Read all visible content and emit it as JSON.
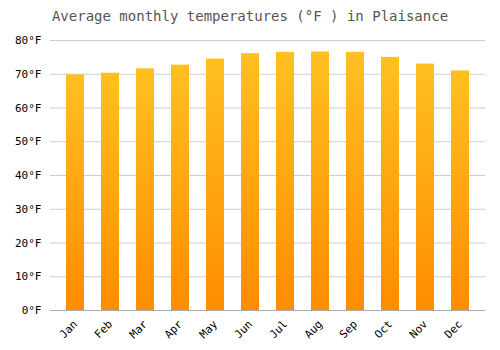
{
  "chart_data": {
    "type": "bar",
    "title": "Average monthly temperatures (°F ) in Plaisance",
    "categories": [
      "Jan",
      "Feb",
      "Mar",
      "Apr",
      "May",
      "Jun",
      "Jul",
      "Aug",
      "Sep",
      "Oct",
      "Nov",
      "Dec"
    ],
    "values": [
      69.8,
      70.3,
      71.6,
      72.7,
      74.5,
      76.1,
      76.5,
      76.6,
      76.5,
      75.0,
      73.0,
      71.0
    ],
    "color": [
      "#FF8C00",
      "#FFC020"
    ],
    "ylim": [
      0,
      80
    ],
    "yticks": [
      {
        "value": 0,
        "label": "0°F"
      },
      {
        "value": 10,
        "label": "10°F"
      },
      {
        "value": 20,
        "label": "20°F"
      },
      {
        "value": 30,
        "label": "30°F"
      },
      {
        "value": 40,
        "label": "40°F"
      },
      {
        "value": 50,
        "label": "50°F"
      },
      {
        "value": 60,
        "label": "60°F"
      },
      {
        "value": 70,
        "label": "70°F"
      },
      {
        "value": 80,
        "label": "80°F"
      }
    ],
    "grid": true
  }
}
